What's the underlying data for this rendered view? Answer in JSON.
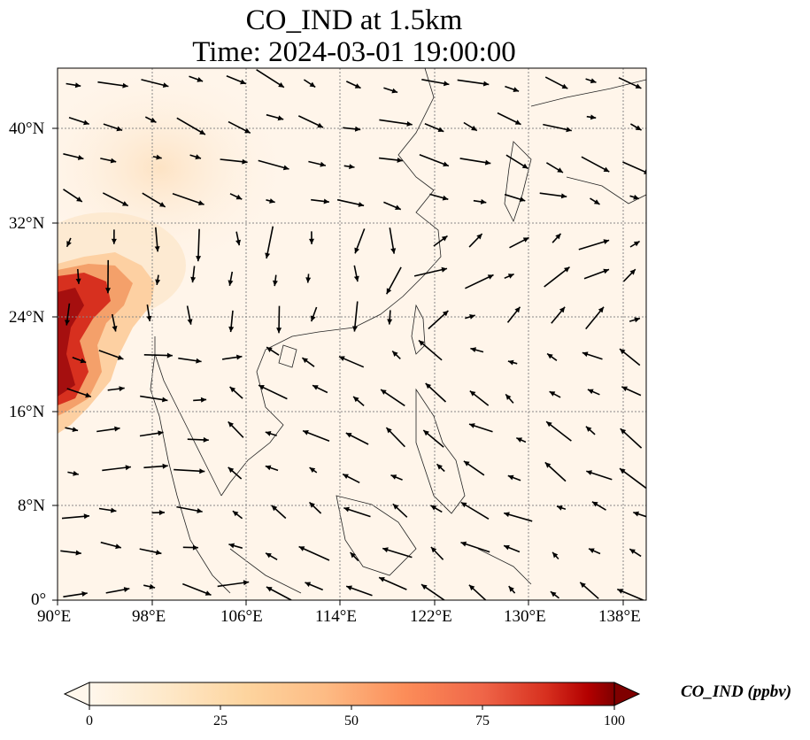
{
  "title": {
    "line1": "CO_IND at 1.5km",
    "line2": "Time: 2024-03-01 19:00:00"
  },
  "axes": {
    "lon_labels": [
      "90°E",
      "98°E",
      "106°E",
      "114°E",
      "122°E",
      "130°E",
      "138°E"
    ],
    "lat_labels": [
      "0°",
      "8°N",
      "16°N",
      "24°N",
      "32°N",
      "40°N"
    ],
    "lon_range": [
      90,
      140
    ],
    "lat_range": [
      0,
      45
    ],
    "grid": "dotted"
  },
  "colorbar": {
    "label": "CO_IND (ppbv)",
    "ticks": [
      "0",
      "25",
      "50",
      "75",
      "100"
    ],
    "range": [
      0,
      100
    ],
    "colormap": "OrRd",
    "extend": "both"
  },
  "colors": {
    "background_low": "#fff5ea",
    "high": "#7f0000",
    "grid": "#888888",
    "coast": "#222222",
    "arrow": "#000000"
  }
}
